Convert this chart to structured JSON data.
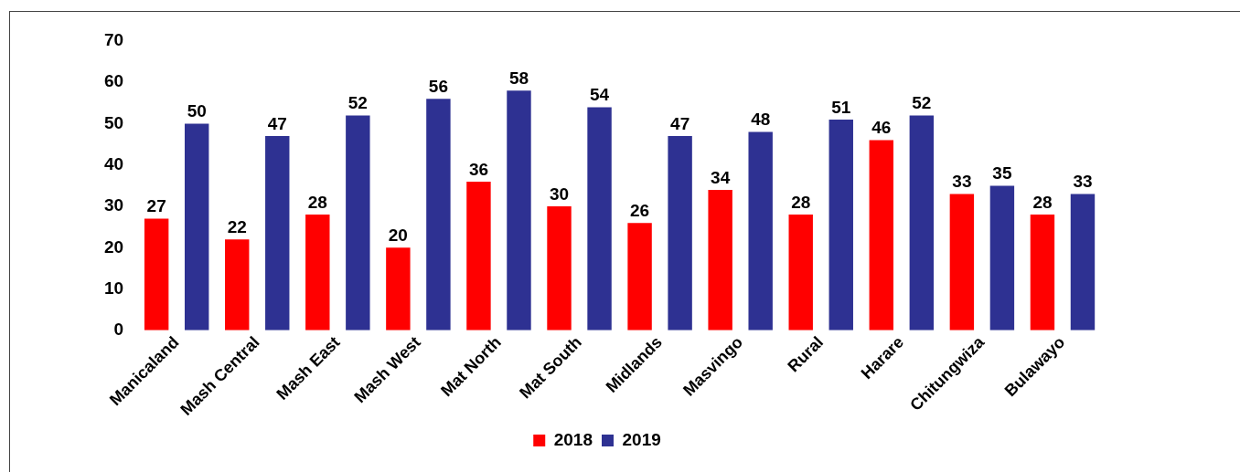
{
  "chart_data": {
    "type": "bar",
    "categories": [
      "Manicaland",
      "Mash Central",
      "Mash East",
      "Mash West",
      "Mat North",
      "Mat South",
      "Midlands",
      "Masvingo",
      "Rural",
      "Harare",
      "Chitungwiza",
      "Bulawayo"
    ],
    "series": [
      {
        "name": "2018",
        "color": "#ff0000",
        "values": [
          27,
          22,
          28,
          20,
          36,
          30,
          26,
          34,
          28,
          46,
          33,
          28
        ]
      },
      {
        "name": "2019",
        "color": "#2e3192",
        "values": [
          50,
          47,
          52,
          56,
          58,
          54,
          47,
          48,
          51,
          52,
          35,
          33
        ]
      }
    ],
    "ylim": [
      0,
      70
    ],
    "yticks": [
      0,
      10,
      20,
      30,
      40,
      50,
      60,
      70
    ],
    "grid": false,
    "legend": "bottom",
    "data_labels": true
  }
}
